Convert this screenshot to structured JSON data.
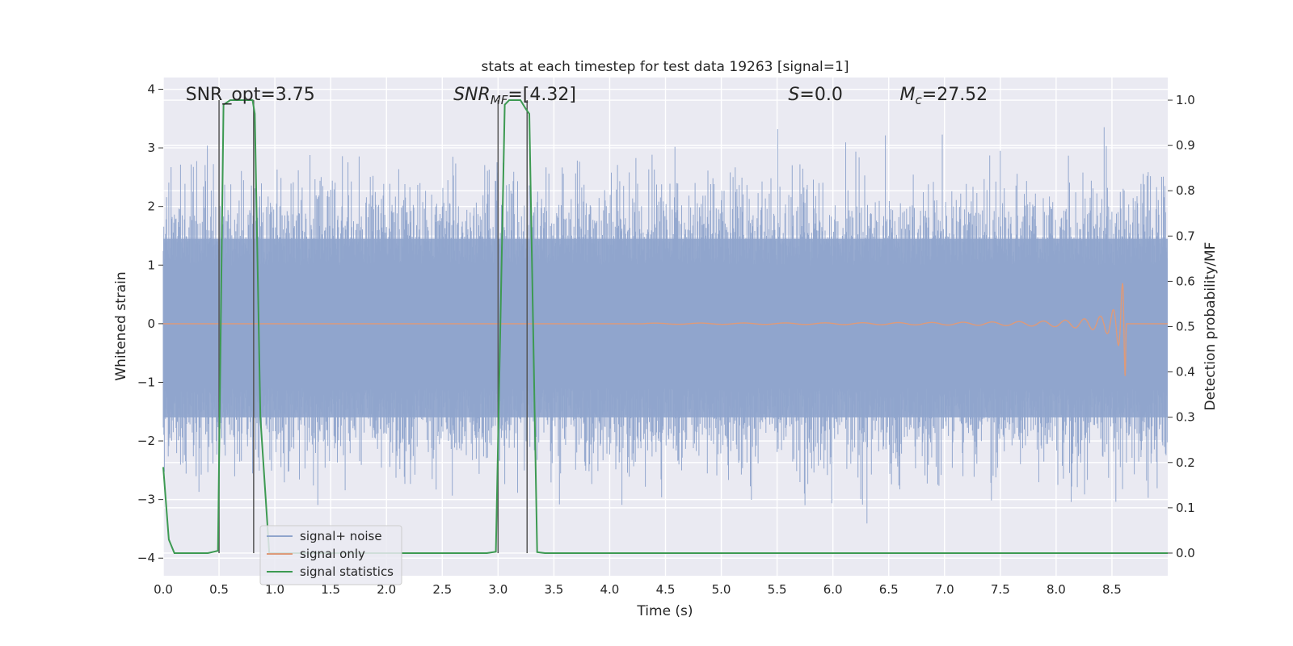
{
  "chart_data": {
    "type": "line",
    "title": "stats at each timestep for test data 19263 [signal=1]",
    "xlabel": "Time (s)",
    "ylabel_left": "Whitened strain",
    "ylabel_right": "Detection probability/MF",
    "xlim": [
      0.0,
      9.0
    ],
    "ylim_left": [
      -4.3,
      4.2
    ],
    "ylim_right": [
      -0.05,
      1.05
    ],
    "x_ticks": [
      "0.0",
      "0.5",
      "1.0",
      "1.5",
      "2.0",
      "2.5",
      "3.0",
      "3.5",
      "4.0",
      "4.5",
      "5.0",
      "5.5",
      "6.0",
      "6.5",
      "7.0",
      "7.5",
      "8.0",
      "8.5"
    ],
    "y_ticks_left": [
      "−4",
      "−3",
      "−2",
      "−1",
      "0",
      "1",
      "2",
      "3",
      "4"
    ],
    "y_ticks_right": [
      "0.0",
      "0.1",
      "0.2",
      "0.3",
      "0.4",
      "0.5",
      "0.6",
      "0.7",
      "0.8",
      "0.9",
      "1.0"
    ],
    "grid": true,
    "legend_placement": "lower-left",
    "colors": {
      "signal_noise": "#8fa4cc",
      "signal_only": "#dd9a7a",
      "signal_statistics": "#3d9a52",
      "markers": "#555555",
      "background": "#eaeaf2"
    },
    "series": [
      {
        "name": "signal+ noise",
        "axis": "left",
        "description_of_values": "whitened noise, roughly Gaussian, envelope -3.7 to 3.5"
      },
      {
        "name": "signal only",
        "axis": "left",
        "chirp": {
          "start": 4.3,
          "merger": 8.63,
          "peak_amplitude": 0.9
        }
      },
      {
        "name": "signal statistics",
        "axis": "right",
        "x": [
          0.0,
          0.05,
          0.1,
          0.2,
          0.4,
          0.49,
          0.54,
          0.6,
          0.8,
          0.82,
          0.87,
          0.95,
          1.5,
          2.0,
          2.5,
          2.9,
          2.98,
          3.06,
          3.1,
          3.15,
          3.2,
          3.25,
          3.28,
          3.35,
          3.42,
          4.0,
          5.0,
          6.0,
          7.0,
          8.0,
          9.0
        ],
        "y": [
          0.19,
          0.03,
          0.0,
          0.0,
          0.0,
          0.005,
          0.99,
          1.0,
          1.0,
          0.97,
          0.3,
          0.0,
          0.0,
          0.0,
          0.0,
          0.0,
          0.003,
          0.99,
          1.0,
          1.0,
          1.0,
          0.98,
          0.97,
          0.002,
          0.0,
          0.0,
          0.0,
          0.0,
          0.0,
          0.0,
          0.0
        ]
      }
    ],
    "vertical_markers": [
      0.5,
      0.81,
      3.0,
      3.26
    ],
    "annotations": [
      {
        "text": "SNR_opt=3.75",
        "x": 0.2
      },
      {
        "base": "SNR",
        "sub": "MF",
        "rest": "=[4.32]",
        "x": 2.6
      },
      {
        "base": "S",
        "sub": "",
        "rest": "=0.0",
        "x": 5.6
      },
      {
        "base": "M",
        "sub": "c",
        "rest": "=27.52",
        "x": 6.6
      }
    ]
  }
}
